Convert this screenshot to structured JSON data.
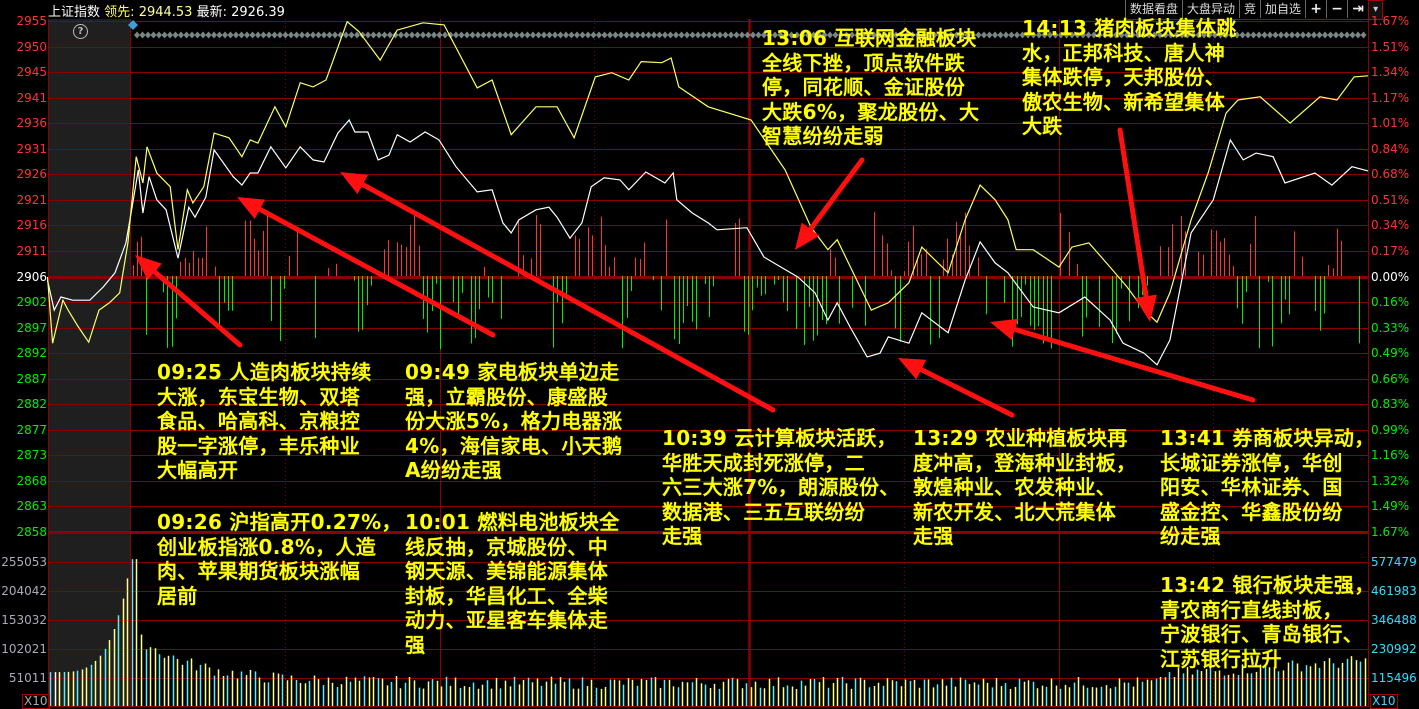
{
  "header": {
    "index_name": "上证指数",
    "leading_label": "领先:",
    "leading_value": "2944.53",
    "latest_label": "最新:",
    "latest_value": "2926.39"
  },
  "toolbar": {
    "buttons": [
      "数据看盘",
      "大盘异动",
      "竞",
      "加自选"
    ],
    "icons": [
      {
        "name": "plus-icon",
        "glyph": "+"
      },
      {
        "name": "minus-icon",
        "glyph": "−"
      },
      {
        "name": "jump-to-end-icon",
        "glyph": "⇥"
      },
      {
        "name": "dropdown-arrow-icon",
        "glyph": "▾"
      }
    ]
  },
  "help_icon": "?",
  "price_axis": {
    "left_labels": [
      "2955",
      "2950",
      "2945",
      "2941",
      "2936",
      "2931",
      "2926",
      "2921",
      "2916",
      "2911",
      "2906",
      "2902",
      "2897",
      "2892",
      "2887",
      "2882",
      "2877",
      "2873",
      "2868",
      "2863",
      "2858"
    ],
    "right_labels": [
      "1.67%",
      "1.51%",
      "1.34%",
      "1.17%",
      "1.01%",
      "0.84%",
      "0.68%",
      "0.51%",
      "0.34%",
      "0.17%",
      "0.00%",
      "0.16%",
      "0.33%",
      "0.49%",
      "0.66%",
      "0.83%",
      "0.99%",
      "1.16%",
      "1.32%",
      "1.49%",
      "1.67%"
    ],
    "prev_close": 2906.4
  },
  "volume_axis": {
    "left_labels": [
      "255053",
      "204042",
      "153032",
      "102021",
      "51011"
    ],
    "right_labels": [
      "577479",
      "461983",
      "346488",
      "230992",
      "115496"
    ],
    "multiplier_label": "X10"
  },
  "colors": {
    "up": "#ff3333",
    "down": "#00ee00",
    "flat": "#ffffff",
    "grid": "#8b0000",
    "leading_line": "#ffff66",
    "latest_line": "#ffffff",
    "annotation": "#ffff00",
    "arrow": "#ff1010",
    "volume_a": "#ffff88",
    "volume_b": "#55eeff"
  },
  "series": {
    "leading": [
      [
        -16,
        2906.2
      ],
      [
        -15,
        2893.6
      ],
      [
        -13,
        2901.8
      ],
      [
        -12,
        2899.9
      ],
      [
        -10,
        2896.7
      ],
      [
        -8,
        2893.8
      ],
      [
        -6,
        2899.9
      ],
      [
        -4,
        2901.3
      ],
      [
        -2,
        2903.2
      ],
      [
        -0.4,
        2912.7
      ],
      [
        1.2,
        2929.1
      ],
      [
        2.5,
        2924.1
      ],
      [
        3.3,
        2931.0
      ],
      [
        5.2,
        2926.0
      ],
      [
        7.8,
        2923.4
      ],
      [
        9.3,
        2911.4
      ],
      [
        11.1,
        2922.8
      ],
      [
        12.2,
        2920.3
      ],
      [
        14.3,
        2923.4
      ],
      [
        16.3,
        2933.6
      ],
      [
        19.2,
        2932.7
      ],
      [
        21.7,
        2929.1
      ],
      [
        23.3,
        2932.3
      ],
      [
        24.8,
        2931.7
      ],
      [
        28.1,
        2938.6
      ],
      [
        30.2,
        2934.8
      ],
      [
        33.0,
        2943.2
      ],
      [
        35.5,
        2942.4
      ],
      [
        38.0,
        2943.7
      ],
      [
        42.1,
        2954.8
      ],
      [
        44.4,
        2952.9
      ],
      [
        48.5,
        2947.5
      ],
      [
        51.8,
        2953.2
      ],
      [
        56.8,
        2954.6
      ],
      [
        60.9,
        2954.2
      ],
      [
        67.3,
        2942.2
      ],
      [
        70.2,
        2943.7
      ],
      [
        73.9,
        2933.3
      ],
      [
        78.7,
        2938.6
      ],
      [
        82.8,
        2938.6
      ],
      [
        86.1,
        2932.7
      ],
      [
        90.2,
        2944.3
      ],
      [
        93.4,
        2945.1
      ],
      [
        96.7,
        2943.7
      ],
      [
        99.1,
        2947.2
      ],
      [
        103.1,
        2947.0
      ],
      [
        104.9,
        2947.9
      ],
      [
        106.4,
        2942.4
      ],
      [
        112.1,
        2938.6
      ],
      [
        120.4,
        2936.1
      ],
      [
        127.0,
        2926.6
      ],
      [
        132.0,
        2915.7
      ],
      [
        135.3,
        2911.4
      ],
      [
        137.1,
        2913.3
      ],
      [
        143.7,
        2899.9
      ],
      [
        147.0,
        2901.3
      ],
      [
        151.0,
        2905.1
      ],
      [
        153.5,
        2911.9
      ],
      [
        158.6,
        2907.0
      ],
      [
        161.9,
        2917.1
      ],
      [
        164.8,
        2923.7
      ],
      [
        167.7,
        2920.9
      ],
      [
        170.2,
        2917.1
      ],
      [
        171.8,
        2911.4
      ],
      [
        175.1,
        2911.4
      ],
      [
        180.1,
        2908.1
      ],
      [
        182.6,
        2911.9
      ],
      [
        185.9,
        2912.7
      ],
      [
        190.0,
        2908.1
      ],
      [
        193.3,
        2904.3
      ],
      [
        196.6,
        2899.9
      ],
      [
        199.1,
        2897.6
      ],
      [
        201.6,
        2903.2
      ],
      [
        205.7,
        2917.1
      ],
      [
        209.0,
        2926.0
      ],
      [
        212.5,
        2937.4
      ],
      [
        214.8,
        2939.9
      ],
      [
        219.1,
        2940.5
      ],
      [
        224.9,
        2935.5
      ],
      [
        230.7,
        2940.5
      ],
      [
        234.0,
        2939.9
      ],
      [
        237.3,
        2944.3
      ],
      [
        240,
        2944.5
      ]
    ],
    "latest": [
      [
        -16,
        2905.6
      ],
      [
        -14.7,
        2899.9
      ],
      [
        -13.4,
        2902.4
      ],
      [
        -11.1,
        2901.8
      ],
      [
        -7.8,
        2901.8
      ],
      [
        -5.2,
        2904.3
      ],
      [
        -2.9,
        2907.0
      ],
      [
        -0.8,
        2912.7
      ],
      [
        0.4,
        2919.5
      ],
      [
        1.6,
        2926.6
      ],
      [
        2.5,
        2918.4
      ],
      [
        3.7,
        2925.3
      ],
      [
        5.2,
        2920.9
      ],
      [
        7.0,
        2919.0
      ],
      [
        9.3,
        2909.8
      ],
      [
        11.4,
        2919.5
      ],
      [
        12.6,
        2917.6
      ],
      [
        14.7,
        2921.4
      ],
      [
        16.3,
        2930.4
      ],
      [
        20.0,
        2925.3
      ],
      [
        21.7,
        2923.7
      ],
      [
        23.3,
        2926.0
      ],
      [
        24.8,
        2926.0
      ],
      [
        27.3,
        2931.0
      ],
      [
        30.2,
        2927.0
      ],
      [
        33.0,
        2931.0
      ],
      [
        35.5,
        2928.5
      ],
      [
        37.6,
        2928.1
      ],
      [
        40.3,
        2933.6
      ],
      [
        42.5,
        2936.1
      ],
      [
        43.6,
        2933.8
      ],
      [
        46.1,
        2933.8
      ],
      [
        48.1,
        2928.5
      ],
      [
        50.2,
        2929.4
      ],
      [
        51.8,
        2933.3
      ],
      [
        54.3,
        2931.9
      ],
      [
        57.2,
        2933.8
      ],
      [
        59.9,
        2932.3
      ],
      [
        63.2,
        2927.2
      ],
      [
        67.3,
        2922.4
      ],
      [
        70.2,
        2922.8
      ],
      [
        72.3,
        2916.5
      ],
      [
        73.9,
        2914.6
      ],
      [
        75.4,
        2917.1
      ],
      [
        78.7,
        2919.0
      ],
      [
        81.2,
        2919.5
      ],
      [
        82.8,
        2917.6
      ],
      [
        85.3,
        2913.6
      ],
      [
        87.6,
        2916.5
      ],
      [
        89.4,
        2923.4
      ],
      [
        91.9,
        2925.1
      ],
      [
        95.0,
        2924.7
      ],
      [
        96.7,
        2922.8
      ],
      [
        100.0,
        2926.2
      ],
      [
        103.7,
        2924.1
      ],
      [
        105.3,
        2926.0
      ],
      [
        106.0,
        2920.9
      ],
      [
        109.0,
        2918.4
      ],
      [
        112.1,
        2916.5
      ],
      [
        113.8,
        2915.2
      ],
      [
        119.6,
        2915.6
      ],
      [
        122.9,
        2910.0
      ],
      [
        126.2,
        2908.1
      ],
      [
        129.5,
        2906.2
      ],
      [
        132.8,
        2903.2
      ],
      [
        135.3,
        2898.0
      ],
      [
        137.1,
        2901.3
      ],
      [
        139.6,
        2896.7
      ],
      [
        142.9,
        2891.0
      ],
      [
        145.4,
        2891.7
      ],
      [
        147.0,
        2894.8
      ],
      [
        151.0,
        2893.6
      ],
      [
        153.5,
        2899.4
      ],
      [
        158.6,
        2895.6
      ],
      [
        161.9,
        2905.6
      ],
      [
        164.8,
        2912.9
      ],
      [
        167.7,
        2908.9
      ],
      [
        170.2,
        2907.0
      ],
      [
        175.1,
        2900.5
      ],
      [
        180.1,
        2899.4
      ],
      [
        185.1,
        2902.4
      ],
      [
        190.0,
        2898.0
      ],
      [
        192.5,
        2893.6
      ],
      [
        196.6,
        2891.7
      ],
      [
        199.1,
        2889.5
      ],
      [
        201.6,
        2894.2
      ],
      [
        205.7,
        2914.6
      ],
      [
        210.0,
        2920.9
      ],
      [
        213.3,
        2932.3
      ],
      [
        215.8,
        2928.5
      ],
      [
        218.3,
        2929.8
      ],
      [
        221.6,
        2929.1
      ],
      [
        223.9,
        2924.1
      ],
      [
        229.7,
        2926.0
      ],
      [
        233.0,
        2923.7
      ],
      [
        236.9,
        2927.2
      ],
      [
        240,
        2926.4
      ]
    ]
  },
  "annotations": [
    {
      "id": "0925",
      "lines": [
        "09:25 人造肉板块持续",
        "大涨，东宝生物、双塔",
        "食品、哈高科、京粮控",
        "股一字涨停，丰乐种业",
        "大幅高开"
      ]
    },
    {
      "id": "0949",
      "lines": [
        "09:49 家电板块单边走",
        "强，立霸股份、康盛股",
        "份大涨5%，格力电器涨",
        "4%，海信家电、小天鹅",
        "A纷纷走强"
      ]
    },
    {
      "id": "0926",
      "lines": [
        "09:26 沪指高开0.27%，",
        "创业板指涨0.8%，人造",
        "肉、苹果期货板块涨幅",
        "居前"
      ]
    },
    {
      "id": "1001",
      "lines": [
        "10:01 燃料电池板块全",
        "线反抽，京城股份、中",
        "钢天源、美锦能源集体",
        "封板，华昌化工、全柴",
        "动力、亚星客车集体走",
        "强"
      ]
    },
    {
      "id": "1039",
      "lines": [
        "10:39 云计算板块活跃，",
        "华胜天成封死涨停，二",
        "六三大涨7%，朗源股份、",
        "数据港、三五互联纷纷",
        "走强"
      ]
    },
    {
      "id": "1329",
      "lines": [
        "13:29 农业种植板块再",
        "度冲高，登海种业封板，",
        "敦煌种业、农发种业、",
        "新农开发、北大荒集体",
        "走强"
      ]
    },
    {
      "id": "1341",
      "lines": [
        "13:41 券商板块异动，",
        "长城证券涨停，华创",
        "阳安、华林证券、国",
        "盛金控、华鑫股份纷",
        "纷走强"
      ]
    },
    {
      "id": "1342",
      "lines": [
        "13:42 银行板块走强，",
        "青农商行直线封板，",
        "宁波银行、青岛银行、",
        "江苏银行拉升"
      ]
    },
    {
      "id": "1306",
      "lines": [
        "13:06 互联网金融板块",
        "全线下挫，顶点软件跌",
        "停，同花顺、金证股份",
        "大跌6%，聚龙股份、大",
        "智慧纷纷走弱"
      ]
    },
    {
      "id": "1413",
      "lines": [
        "14:13 猪肉板块集体跳",
        "水，正邦科技、唐人神",
        "集体跌停，天邦股份、",
        "傲农生物、新希望集体",
        "大跌"
      ]
    }
  ]
}
